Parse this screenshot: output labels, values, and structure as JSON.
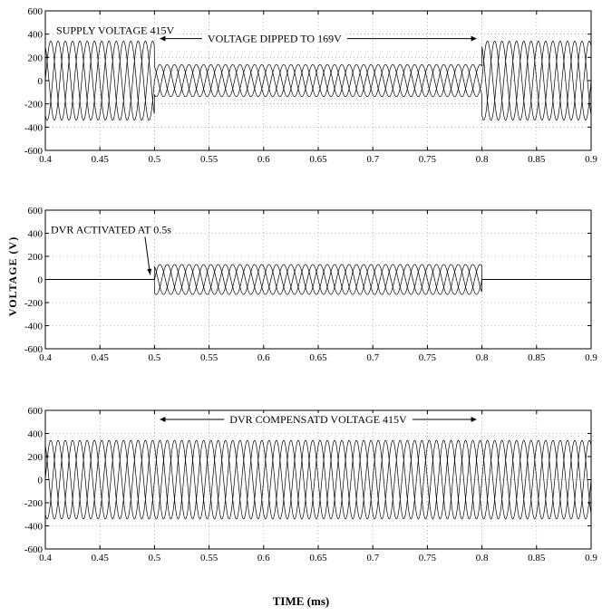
{
  "figure": {
    "ylabel": "VOLTAGE (V)",
    "xlabel": "TIME (ms)"
  },
  "chart_data": [
    {
      "type": "line",
      "panel": "supply",
      "xlim": [
        0.4,
        0.9
      ],
      "ylim": [
        -600,
        600
      ],
      "xticks": [
        "0.4",
        "0.45",
        "0.5",
        "0.55",
        "0.6",
        "0.65",
        "0.7",
        "0.75",
        "0.8",
        "0.85",
        "0.9"
      ],
      "yticks": [
        "600",
        "400",
        "200",
        "0",
        "-200",
        "-400",
        "-600"
      ],
      "grid": true,
      "frequency_hz": 50,
      "phases": 3,
      "amplitude_segments": [
        {
          "t_start": 0.4,
          "t_end": 0.5,
          "peak": 340
        },
        {
          "t_start": 0.5,
          "t_end": 0.8,
          "peak": 138
        },
        {
          "t_start": 0.8,
          "t_end": 0.9,
          "peak": 340
        }
      ],
      "annotations": [
        {
          "text": "SUPPLY VOLTAGE 415V",
          "x": 0.41,
          "y": 400
        },
        {
          "text": "VOLTAGE DIPPED TO 169V",
          "x": 0.61,
          "y": 330,
          "arrows": "both"
        }
      ]
    },
    {
      "type": "line",
      "panel": "dvr_injected",
      "xlim": [
        0.4,
        0.9
      ],
      "ylim": [
        -600,
        600
      ],
      "xticks": [
        "0.4",
        "0.45",
        "0.5",
        "0.55",
        "0.6",
        "0.65",
        "0.7",
        "0.75",
        "0.8",
        "0.85",
        "0.9"
      ],
      "yticks": [
        "600",
        "400",
        "200",
        "0",
        "-200",
        "-400",
        "-600"
      ],
      "grid": true,
      "frequency_hz": 50,
      "phases": 3,
      "amplitude_segments": [
        {
          "t_start": 0.4,
          "t_end": 0.5,
          "peak": 0
        },
        {
          "t_start": 0.5,
          "t_end": 0.8,
          "peak": 130
        },
        {
          "t_start": 0.8,
          "t_end": 0.9,
          "peak": 0
        }
      ],
      "annotations": [
        {
          "text": "DVR ACTIVATED AT 0.5s",
          "x": 0.405,
          "y": 400,
          "arrow_to_x": 0.496,
          "arrow_to_y": 40
        }
      ]
    },
    {
      "type": "line",
      "panel": "load",
      "xlim": [
        0.4,
        0.9
      ],
      "ylim": [
        -600,
        600
      ],
      "xticks": [
        "0.4",
        "0.45",
        "0.5",
        "0.55",
        "0.6",
        "0.65",
        "0.7",
        "0.75",
        "0.8",
        "0.85",
        "0.9"
      ],
      "yticks": [
        "600",
        "400",
        "200",
        "0",
        "-200",
        "-400",
        "-600"
      ],
      "grid": true,
      "frequency_hz": 50,
      "phases": 3,
      "amplitude_segments": [
        {
          "t_start": 0.4,
          "t_end": 0.9,
          "peak": 340
        }
      ],
      "annotations": [
        {
          "text": "DVR COMPENSATD VOLTAGE 415V",
          "x": 0.65,
          "y": 490,
          "arrows": "both"
        }
      ]
    }
  ]
}
